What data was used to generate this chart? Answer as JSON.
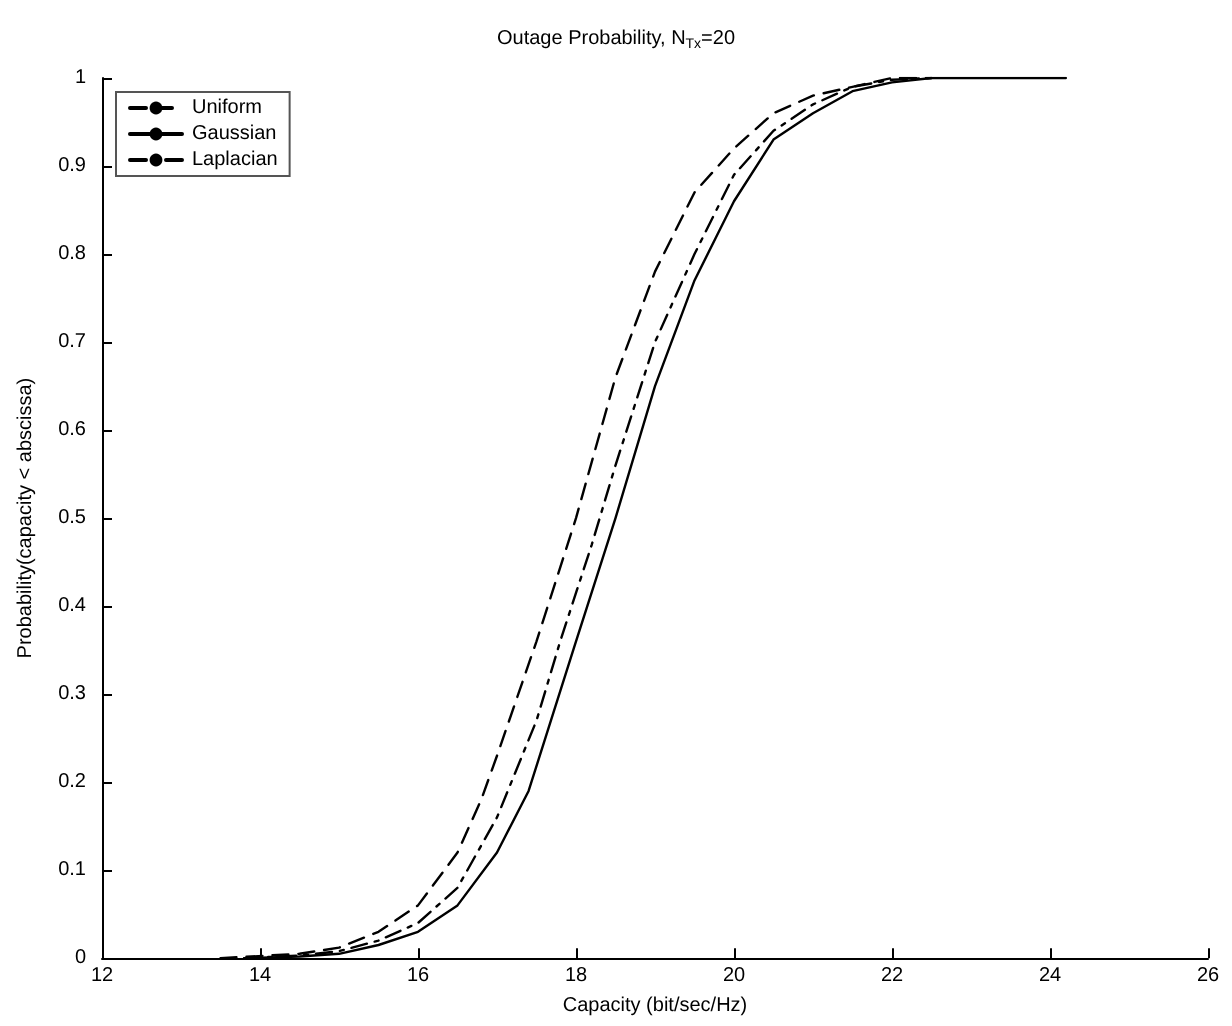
{
  "chart_data": {
    "type": "line",
    "title": "Outage Probability, N$_{Tx}$=20",
    "xlabel": "Capacity (bit/sec/Hz)",
    "ylabel": "Probability(capacity < abscissa)",
    "xlim": [
      12,
      26
    ],
    "xticks": [
      12,
      14,
      16,
      18,
      20,
      22,
      24,
      26
    ],
    "ylim": [
      0,
      1
    ],
    "yticks": [
      0,
      0.1,
      0.2,
      0.3,
      0.4,
      0.5,
      0.6,
      0.7,
      0.8,
      0.9,
      1
    ],
    "grid": false,
    "legend": "top left",
    "marker": "none",
    "series": [
      {
        "name": "Uniform",
        "color": "#000000",
        "line_style": "dashed",
        "x": [
          13.5,
          14.5,
          15,
          15.5,
          16,
          16.5,
          16.8,
          17,
          17.5,
          18,
          18.5,
          19,
          19.5,
          20,
          20.5,
          21,
          21.5,
          22,
          22.5
        ],
        "values": [
          0,
          0.005,
          0.012,
          0.03,
          0.06,
          0.12,
          0.18,
          0.23,
          0.36,
          0.5,
          0.66,
          0.78,
          0.87,
          0.92,
          0.96,
          0.98,
          0.99,
          1,
          1
        ]
      },
      {
        "name": "Gaussian",
        "color": "#000000",
        "line_style": "solid",
        "x": [
          13.8,
          14.5,
          15,
          15.5,
          16,
          16.5,
          17,
          17.4,
          18,
          18.5,
          19,
          19.5,
          20,
          20.5,
          21,
          21.5,
          22,
          22.5,
          24.2
        ],
        "values": [
          0,
          0.002,
          0.005,
          0.015,
          0.03,
          0.06,
          0.12,
          0.19,
          0.36,
          0.5,
          0.65,
          0.77,
          0.86,
          0.93,
          0.96,
          0.985,
          0.995,
          1,
          1
        ]
      },
      {
        "name": "Laplacian",
        "color": "#000000",
        "line_style": "dashdot",
        "x": [
          13.8,
          14.5,
          15,
          15.5,
          16,
          16.5,
          17,
          17.5,
          17.8,
          18.2,
          18.5,
          19,
          19.5,
          20,
          20.5,
          21,
          21.5,
          22,
          22.5
        ],
        "values": [
          0,
          0.003,
          0.008,
          0.02,
          0.04,
          0.08,
          0.16,
          0.27,
          0.36,
          0.47,
          0.56,
          0.7,
          0.8,
          0.89,
          0.94,
          0.97,
          0.99,
          0.998,
          1
        ]
      }
    ]
  }
}
